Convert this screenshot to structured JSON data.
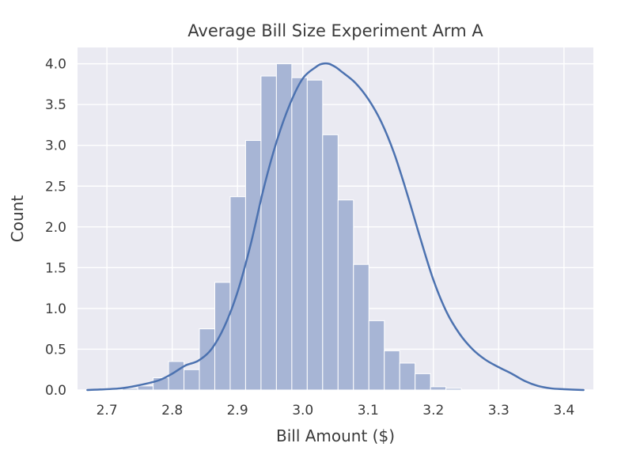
{
  "chart_data": {
    "type": "bar",
    "title": "Average Bill Size Experiment Arm A",
    "xlabel": "Bill Amount ($)",
    "ylabel": "Count",
    "xlim": [
      2.655,
      3.445
    ],
    "ylim": [
      0,
      4.2
    ],
    "xticks": [
      2.7,
      2.8,
      2.9,
      3.0,
      3.1,
      3.2,
      3.3,
      3.4
    ],
    "yticks": [
      0.0,
      0.5,
      1.0,
      1.5,
      2.0,
      2.5,
      3.0,
      3.5,
      4.0
    ],
    "xtick_labels": [
      "2.7",
      "2.8",
      "2.9",
      "3.0",
      "3.1",
      "3.2",
      "3.3",
      "3.4"
    ],
    "ytick_labels": [
      "0.0",
      "0.5",
      "1.0",
      "1.5",
      "2.0",
      "2.5",
      "3.0",
      "3.5",
      "4.0"
    ],
    "grid": true,
    "histogram": {
      "bin_start": 2.7,
      "bin_width": 0.0236,
      "values": [
        0.0,
        0.02,
        0.05,
        0.15,
        0.35,
        0.25,
        0.75,
        1.32,
        2.37,
        3.06,
        3.85,
        4.0,
        3.83,
        3.8,
        3.13,
        2.33,
        1.54,
        0.85,
        0.48,
        0.33,
        0.2,
        0.04,
        0.02
      ]
    },
    "kde_curve": {
      "x": [
        2.67,
        2.72,
        2.75,
        2.78,
        2.8,
        2.82,
        2.84,
        2.86,
        2.88,
        2.9,
        2.92,
        2.94,
        2.96,
        2.98,
        3.0,
        3.02,
        3.03,
        3.04,
        3.05,
        3.06,
        3.08,
        3.1,
        3.12,
        3.14,
        3.16,
        3.18,
        3.2,
        3.22,
        3.24,
        3.26,
        3.28,
        3.3,
        3.32,
        3.34,
        3.36,
        3.38,
        3.4,
        3.43
      ],
      "y": [
        0.0,
        0.02,
        0.06,
        0.12,
        0.2,
        0.3,
        0.36,
        0.5,
        0.78,
        1.2,
        1.78,
        2.47,
        3.05,
        3.5,
        3.82,
        3.96,
        4.0,
        4.0,
        3.96,
        3.9,
        3.77,
        3.57,
        3.29,
        2.9,
        2.4,
        1.86,
        1.35,
        0.96,
        0.69,
        0.5,
        0.37,
        0.28,
        0.2,
        0.11,
        0.05,
        0.02,
        0.01,
        0.0
      ]
    },
    "colors": {
      "background": "#eaeaf2",
      "grid": "#ffffff",
      "bar_fill": "#a7b5d5",
      "bar_edge": "#ffffff",
      "curve": "#4c72b0"
    }
  }
}
